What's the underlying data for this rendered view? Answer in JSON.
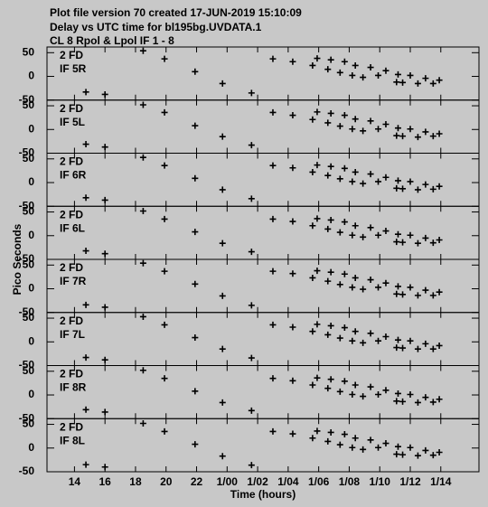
{
  "header": [
    "Plot file version 70  created 17-JUN-2019 15:10:09",
    "Delay vs UTC time for bl195bg.UVDATA.1",
    "CL 8  Rpol & Lpol  IF 1 - 8"
  ],
  "chart_data": {
    "type": "scatter",
    "xlabel": "Time (hours)",
    "ylabel": "Pico Seconds",
    "xlim": [
      12.2,
      40.5
    ],
    "xticks": [
      14,
      16,
      18,
      20,
      22,
      {
        "value": 24,
        "label": "1/00"
      },
      {
        "value": 26,
        "label": "1/02"
      },
      {
        "value": 28,
        "label": "1/04"
      },
      {
        "value": 30,
        "label": "1/06"
      },
      {
        "value": 32,
        "label": "1/08"
      },
      {
        "value": 34,
        "label": "1/10"
      },
      {
        "value": 36,
        "label": "1/12"
      },
      {
        "value": 38,
        "label": "1/14"
      }
    ],
    "ylim": [
      -50,
      62
    ],
    "yticks": [
      -50,
      0,
      50
    ],
    "x": [
      14.75,
      16.0,
      18.5,
      19.9,
      21.9,
      23.7,
      25.6,
      27.0,
      28.3,
      29.6,
      29.9,
      30.6,
      30.8,
      31.4,
      31.7,
      32.2,
      32.4,
      32.9,
      33.4,
      33.9,
      34.4,
      35.1,
      35.2,
      35.5,
      36.0,
      36.5,
      37.0,
      37.5,
      37.9
    ],
    "series": [
      {
        "source": "2 FD",
        "name": "IF 5R",
        "values": [
          -33,
          -38,
          54,
          37,
          10,
          -15,
          -35,
          37,
          31,
          23,
          38,
          15,
          35,
          8,
          31,
          2,
          23,
          -2,
          19,
          2,
          12,
          -12,
          4,
          -13,
          2,
          -15,
          -4,
          -15,
          -8
        ]
      },
      {
        "source": "2 FD",
        "name": "IF 5L",
        "values": [
          -31,
          -37,
          52,
          36,
          8,
          -15,
          -33,
          36,
          30,
          21,
          37,
          14,
          34,
          7,
          30,
          1,
          22,
          -3,
          18,
          1,
          11,
          -13,
          3,
          -14,
          1,
          -16,
          -5,
          -14,
          -9
        ]
      },
      {
        "source": "2 FD",
        "name": "IF 6R",
        "values": [
          -32,
          -37,
          53,
          36,
          9,
          -15,
          -34,
          36,
          31,
          22,
          37,
          15,
          34,
          8,
          30,
          2,
          22,
          -2,
          18,
          2,
          11,
          -12,
          4,
          -13,
          2,
          -15,
          -4,
          -14,
          -8
        ]
      },
      {
        "source": "2 FD",
        "name": "IF 6L",
        "values": [
          -32,
          -38,
          52,
          35,
          8,
          -16,
          -34,
          35,
          30,
          21,
          36,
          14,
          33,
          7,
          29,
          1,
          21,
          -3,
          17,
          1,
          10,
          -13,
          3,
          -14,
          1,
          -16,
          -5,
          -15,
          -9
        ]
      },
      {
        "source": "2 FD",
        "name": "IF 7R",
        "values": [
          -34,
          -39,
          54,
          37,
          10,
          -15,
          -35,
          37,
          32,
          23,
          38,
          16,
          35,
          9,
          31,
          3,
          23,
          -1,
          19,
          3,
          12,
          -11,
          5,
          -12,
          3,
          -14,
          -3,
          -14,
          -7
        ]
      },
      {
        "source": "2 FD",
        "name": "IF 7L",
        "values": [
          -33,
          -38,
          53,
          36,
          9,
          -15,
          -34,
          36,
          31,
          22,
          37,
          15,
          34,
          8,
          30,
          2,
          22,
          -2,
          18,
          2,
          11,
          -12,
          4,
          -13,
          2,
          -15,
          -4,
          -15,
          -8
        ]
      },
      {
        "source": "2 FD",
        "name": "IF 8R",
        "values": [
          -31,
          -36,
          52,
          35,
          8,
          -16,
          -33,
          35,
          30,
          21,
          36,
          14,
          33,
          7,
          29,
          1,
          21,
          -3,
          17,
          1,
          10,
          -13,
          3,
          -14,
          1,
          -16,
          -5,
          -15,
          -9
        ]
      },
      {
        "source": "2 FD",
        "name": "IF 8L",
        "values": [
          -35,
          -40,
          52,
          35,
          8,
          -17,
          -36,
          35,
          30,
          21,
          36,
          14,
          33,
          7,
          29,
          1,
          21,
          -3,
          17,
          1,
          10,
          -13,
          3,
          -14,
          1,
          -16,
          -5,
          -15,
          -9
        ]
      }
    ]
  }
}
